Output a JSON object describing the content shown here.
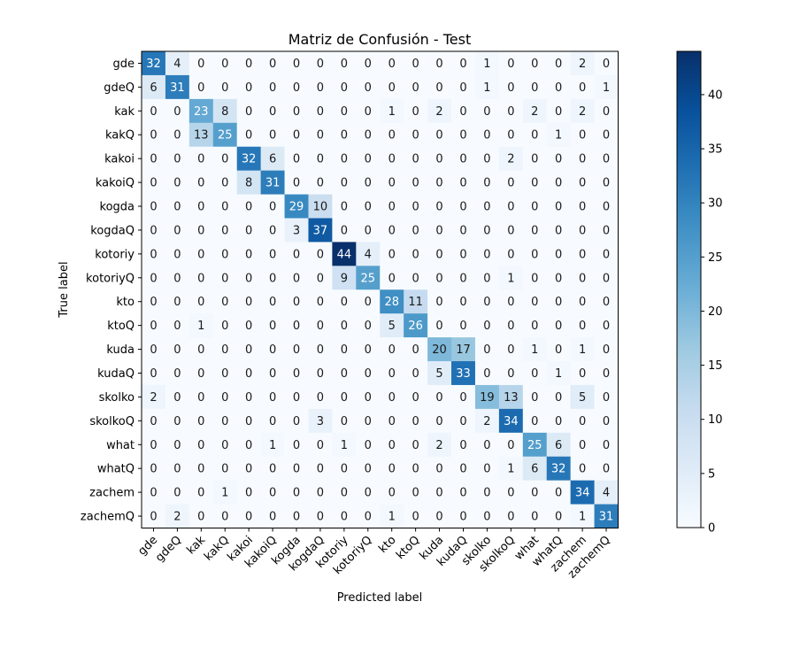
{
  "chart_data": {
    "type": "heatmap",
    "title": "Matriz de Confusión - Test",
    "xlabel": "Predicted label",
    "ylabel": "True label",
    "labels": [
      "gde",
      "gdeQ",
      "kak",
      "kakQ",
      "kakoi",
      "kakoiQ",
      "kogda",
      "kogdaQ",
      "kotoriy",
      "kotoriyQ",
      "kto",
      "ktoQ",
      "kuda",
      "kudaQ",
      "skolko",
      "skolkoQ",
      "what",
      "whatQ",
      "zachem",
      "zachemQ"
    ],
    "matrix": [
      [
        32,
        4,
        0,
        0,
        0,
        0,
        0,
        0,
        0,
        0,
        0,
        0,
        0,
        0,
        1,
        0,
        0,
        0,
        2,
        0
      ],
      [
        6,
        31,
        0,
        0,
        0,
        0,
        0,
        0,
        0,
        0,
        0,
        0,
        0,
        0,
        1,
        0,
        0,
        0,
        0,
        1
      ],
      [
        0,
        0,
        23,
        8,
        0,
        0,
        0,
        0,
        0,
        0,
        1,
        0,
        2,
        0,
        0,
        0,
        2,
        0,
        2,
        0
      ],
      [
        0,
        0,
        13,
        25,
        0,
        0,
        0,
        0,
        0,
        0,
        0,
        0,
        0,
        0,
        0,
        0,
        0,
        1,
        0,
        0
      ],
      [
        0,
        0,
        0,
        0,
        32,
        6,
        0,
        0,
        0,
        0,
        0,
        0,
        0,
        0,
        0,
        2,
        0,
        0,
        0,
        0
      ],
      [
        0,
        0,
        0,
        0,
        8,
        31,
        0,
        0,
        0,
        0,
        0,
        0,
        0,
        0,
        0,
        0,
        0,
        0,
        0,
        0
      ],
      [
        0,
        0,
        0,
        0,
        0,
        0,
        29,
        10,
        0,
        0,
        0,
        0,
        0,
        0,
        0,
        0,
        0,
        0,
        0,
        0
      ],
      [
        0,
        0,
        0,
        0,
        0,
        0,
        3,
        37,
        0,
        0,
        0,
        0,
        0,
        0,
        0,
        0,
        0,
        0,
        0,
        0
      ],
      [
        0,
        0,
        0,
        0,
        0,
        0,
        0,
        0,
        44,
        4,
        0,
        0,
        0,
        0,
        0,
        0,
        0,
        0,
        0,
        0
      ],
      [
        0,
        0,
        0,
        0,
        0,
        0,
        0,
        0,
        9,
        25,
        0,
        0,
        0,
        0,
        0,
        1,
        0,
        0,
        0,
        0
      ],
      [
        0,
        0,
        0,
        0,
        0,
        0,
        0,
        0,
        0,
        0,
        28,
        11,
        0,
        0,
        0,
        0,
        0,
        0,
        0,
        0
      ],
      [
        0,
        0,
        1,
        0,
        0,
        0,
        0,
        0,
        0,
        0,
        5,
        26,
        0,
        0,
        0,
        0,
        0,
        0,
        0,
        0
      ],
      [
        0,
        0,
        0,
        0,
        0,
        0,
        0,
        0,
        0,
        0,
        0,
        0,
        20,
        17,
        0,
        0,
        1,
        0,
        1,
        0
      ],
      [
        0,
        0,
        0,
        0,
        0,
        0,
        0,
        0,
        0,
        0,
        0,
        0,
        5,
        33,
        0,
        0,
        0,
        1,
        0,
        0
      ],
      [
        2,
        0,
        0,
        0,
        0,
        0,
        0,
        0,
        0,
        0,
        0,
        0,
        0,
        0,
        19,
        13,
        0,
        0,
        5,
        0
      ],
      [
        0,
        0,
        0,
        0,
        0,
        0,
        0,
        3,
        0,
        0,
        0,
        0,
        0,
        0,
        2,
        34,
        0,
        0,
        0,
        0
      ],
      [
        0,
        0,
        0,
        0,
        0,
        1,
        0,
        0,
        1,
        0,
        0,
        0,
        2,
        0,
        0,
        0,
        25,
        6,
        0,
        0
      ],
      [
        0,
        0,
        0,
        0,
        0,
        0,
        0,
        0,
        0,
        0,
        0,
        0,
        0,
        0,
        0,
        1,
        6,
        32,
        0,
        0
      ],
      [
        0,
        0,
        0,
        1,
        0,
        0,
        0,
        0,
        0,
        0,
        0,
        0,
        0,
        0,
        0,
        0,
        0,
        0,
        34,
        4
      ],
      [
        0,
        2,
        0,
        0,
        0,
        0,
        0,
        0,
        0,
        0,
        1,
        0,
        0,
        0,
        0,
        0,
        0,
        0,
        1,
        31
      ]
    ],
    "colorbar": {
      "vmin": 0,
      "vmax": 44,
      "ticks": [
        0,
        5,
        10,
        15,
        20,
        25,
        30,
        35,
        40
      ]
    },
    "colormap": "Blues",
    "grid": false
  }
}
